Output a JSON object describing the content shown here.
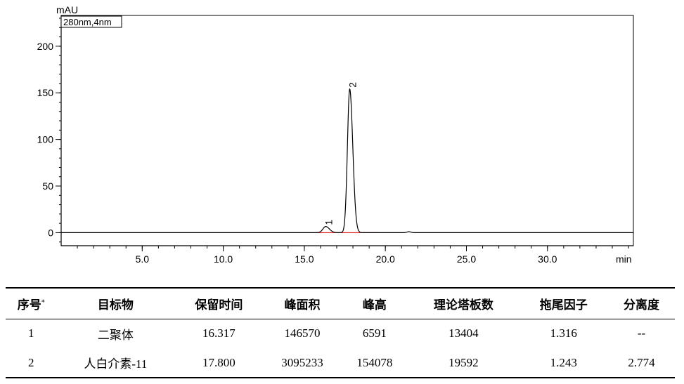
{
  "chart_data": {
    "type": "line",
    "ylabel": "mAU",
    "xlabel": "min",
    "channel_label": "280nm,4nm",
    "xlim": [
      0,
      35.3
    ],
    "ylim": [
      -14,
      233
    ],
    "x_ticks": [
      5.0,
      10.0,
      15.0,
      20.0,
      25.0,
      30.0
    ],
    "x_tick_labels": [
      "5.0",
      "10.0",
      "15.0",
      "20.0",
      "25.0",
      "30.0"
    ],
    "y_ticks": [
      0,
      50,
      100,
      150,
      200
    ],
    "y_tick_labels": [
      "0",
      "50",
      "100",
      "150",
      "200"
    ],
    "peaks": [
      {
        "label": "1",
        "retention_time": 16.317,
        "height": 6.6
      },
      {
        "label": "2",
        "retention_time": 17.8,
        "height": 154.1
      }
    ],
    "minor_peaks": [
      {
        "retention_time": 21.45,
        "height": 1.0
      }
    ],
    "colors": {
      "trace": "#000000",
      "baseline": "#e00000"
    }
  },
  "table": {
    "headers": [
      "序号",
      "目标物",
      "保留时间",
      "峰面积",
      "峰高",
      "理论塔板数",
      "拖尾因子",
      "分离度"
    ],
    "header_note": "*",
    "rows": [
      [
        "1",
        "二聚体",
        "16.317",
        "146570",
        "6591",
        "13404",
        "1.316",
        "--"
      ],
      [
        "2",
        "人白介素-11",
        "17.800",
        "3095233",
        "154078",
        "19592",
        "1.243",
        "2.774"
      ]
    ]
  }
}
